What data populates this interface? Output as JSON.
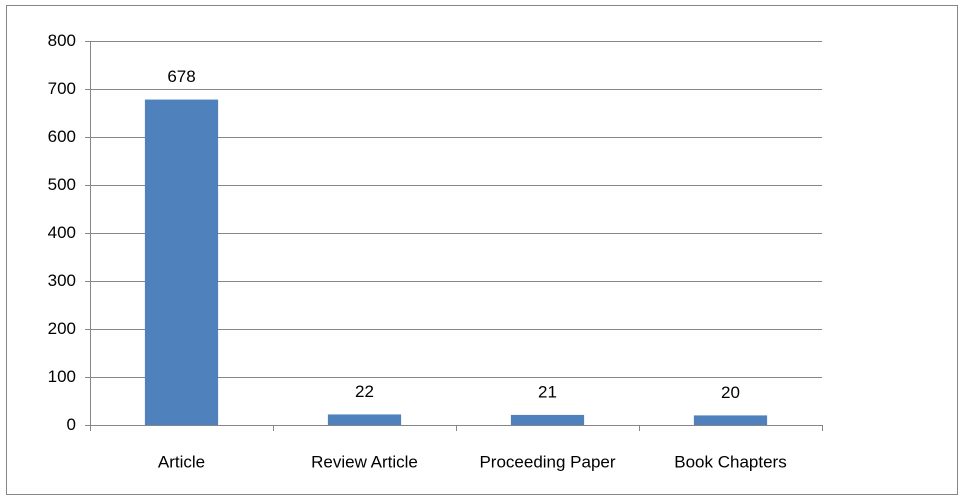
{
  "chart_data": {
    "type": "bar",
    "categories": [
      "Article",
      "Review Article",
      "Proceeding Paper",
      "Book Chapters"
    ],
    "values": [
      678,
      22,
      21,
      20
    ],
    "color": "#4f81bd",
    "ylim": [
      0,
      800
    ],
    "yticks": [
      0,
      100,
      200,
      300,
      400,
      500,
      600,
      700,
      800
    ],
    "grid": true,
    "data_labels": true
  }
}
